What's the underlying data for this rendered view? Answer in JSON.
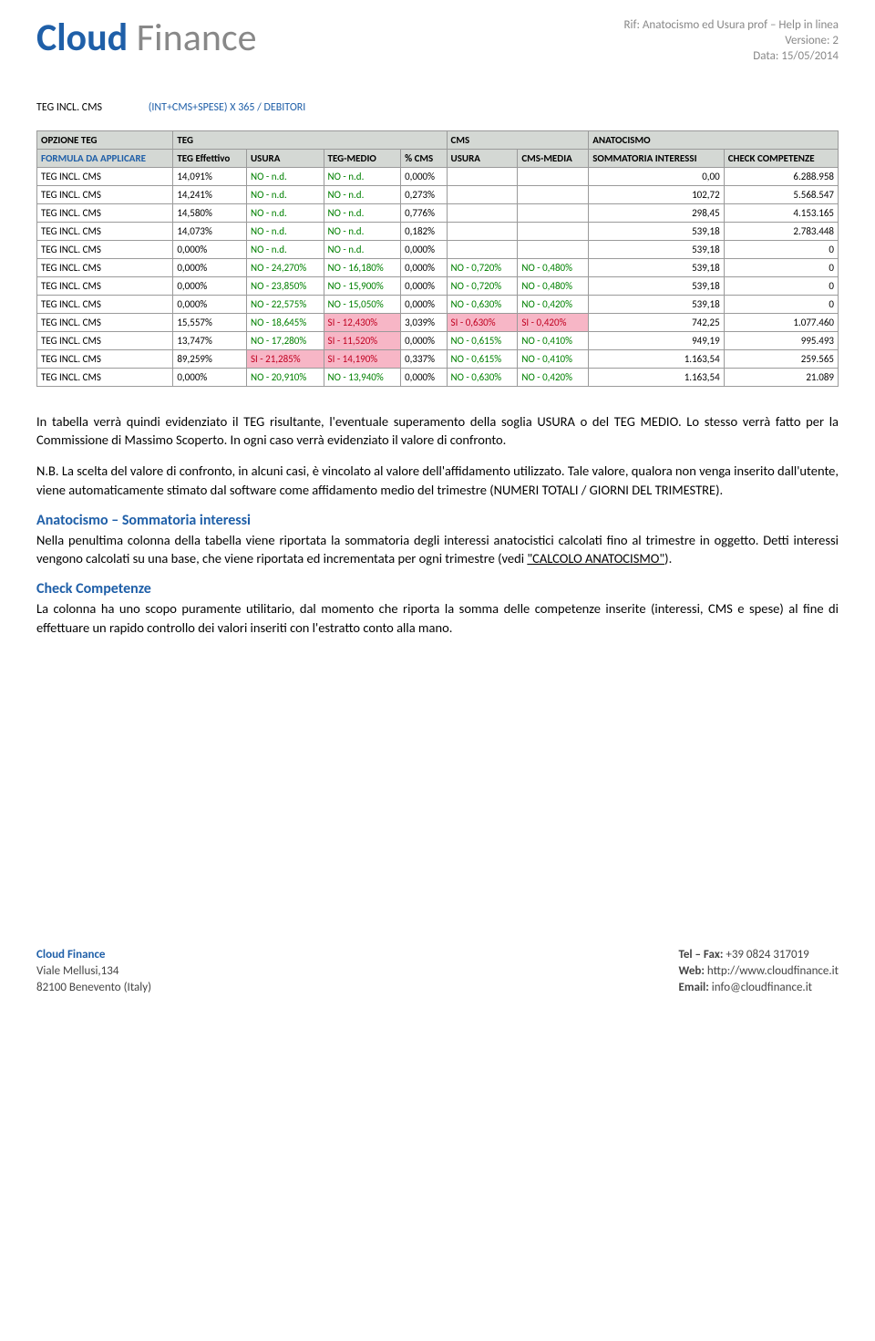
{
  "header": {
    "logo_bold": "Cloud",
    "logo_light": " Finance",
    "meta_line1": "Rif: Anatocismo ed Usura prof – Help in linea",
    "meta_line2": "Versione: 2",
    "meta_line3": "Data: 15/05/2014"
  },
  "formula": {
    "label": "TEG INCL. CMS",
    "value": "(INT+CMS+SPESE) X 365 / DEBITORI"
  },
  "table": {
    "group_headers": [
      "OPZIONE TEG",
      "TEG",
      "CMS",
      "ANATOCISMO"
    ],
    "group_spans": [
      1,
      4,
      2,
      2
    ],
    "columns": [
      "FORMULA DA APPLICARE",
      "TEG Effettivo",
      "USURA",
      "TEG-MEDIO",
      "% CMS",
      "USURA",
      "CMS-MEDIA",
      "SOMMATORIA INTERESSI",
      "CHECK COMPETENZE"
    ],
    "rows": [
      {
        "opt": "TEG INCL. CMS",
        "teg": "14,091%",
        "usura": {
          "t": "NO - n.d.",
          "c": "green"
        },
        "tegm": {
          "t": "NO - n.d.",
          "c": "green"
        },
        "pcms": "0,000%",
        "cu": {
          "t": "",
          "c": ""
        },
        "cm": {
          "t": "",
          "c": ""
        },
        "si": "0,00",
        "cc": "6.288.958"
      },
      {
        "opt": "TEG INCL. CMS",
        "teg": "14,241%",
        "usura": {
          "t": "NO - n.d.",
          "c": "green"
        },
        "tegm": {
          "t": "NO - n.d.",
          "c": "green"
        },
        "pcms": "0,273%",
        "cu": {
          "t": "",
          "c": ""
        },
        "cm": {
          "t": "",
          "c": ""
        },
        "si": "102,72",
        "cc": "5.568.547"
      },
      {
        "opt": "TEG INCL. CMS",
        "teg": "14,580%",
        "usura": {
          "t": "NO - n.d.",
          "c": "green"
        },
        "tegm": {
          "t": "NO - n.d.",
          "c": "green"
        },
        "pcms": "0,776%",
        "cu": {
          "t": "",
          "c": ""
        },
        "cm": {
          "t": "",
          "c": ""
        },
        "si": "298,45",
        "cc": "4.153.165"
      },
      {
        "opt": "TEG INCL. CMS",
        "teg": "14,073%",
        "usura": {
          "t": "NO - n.d.",
          "c": "green"
        },
        "tegm": {
          "t": "NO - n.d.",
          "c": "green"
        },
        "pcms": "0,182%",
        "cu": {
          "t": "",
          "c": ""
        },
        "cm": {
          "t": "",
          "c": ""
        },
        "si": "539,18",
        "cc": "2.783.448"
      },
      {
        "opt": "TEG INCL. CMS",
        "teg": "0,000%",
        "usura": {
          "t": "NO - n.d.",
          "c": "green"
        },
        "tegm": {
          "t": "NO - n.d.",
          "c": "green"
        },
        "pcms": "0,000%",
        "cu": {
          "t": "",
          "c": ""
        },
        "cm": {
          "t": "",
          "c": ""
        },
        "si": "539,18",
        "cc": "0"
      },
      {
        "opt": "TEG INCL. CMS",
        "teg": "0,000%",
        "usura": {
          "t": "NO - 24,270%",
          "c": "green"
        },
        "tegm": {
          "t": "NO - 16,180%",
          "c": "green"
        },
        "pcms": "0,000%",
        "cu": {
          "t": "NO - 0,720%",
          "c": "green"
        },
        "cm": {
          "t": "NO - 0,480%",
          "c": "green"
        },
        "si": "539,18",
        "cc": "0"
      },
      {
        "opt": "TEG INCL. CMS",
        "teg": "0,000%",
        "usura": {
          "t": "NO - 23,850%",
          "c": "green"
        },
        "tegm": {
          "t": "NO - 15,900%",
          "c": "green"
        },
        "pcms": "0,000%",
        "cu": {
          "t": "NO - 0,720%",
          "c": "green"
        },
        "cm": {
          "t": "NO - 0,480%",
          "c": "green"
        },
        "si": "539,18",
        "cc": "0"
      },
      {
        "opt": "TEG INCL. CMS",
        "teg": "0,000%",
        "usura": {
          "t": "NO - 22,575%",
          "c": "green"
        },
        "tegm": {
          "t": "NO - 15,050%",
          "c": "green"
        },
        "pcms": "0,000%",
        "cu": {
          "t": "NO - 0,630%",
          "c": "green"
        },
        "cm": {
          "t": "NO - 0,420%",
          "c": "green"
        },
        "si": "539,18",
        "cc": "0"
      },
      {
        "opt": "TEG INCL. CMS",
        "teg": "15,557%",
        "usura": {
          "t": "NO - 18,645%",
          "c": "green"
        },
        "tegm": {
          "t": "SI - 12,430%",
          "c": "red-bg"
        },
        "pcms": "3,039%",
        "cu": {
          "t": "SI - 0,630%",
          "c": "red-bg"
        },
        "cm": {
          "t": "SI - 0,420%",
          "c": "red-bg"
        },
        "si": "742,25",
        "cc": "1.077.460"
      },
      {
        "opt": "TEG INCL. CMS",
        "teg": "13,747%",
        "usura": {
          "t": "NO - 17,280%",
          "c": "green"
        },
        "tegm": {
          "t": "SI - 11,520%",
          "c": "red-bg"
        },
        "pcms": "0,000%",
        "cu": {
          "t": "NO - 0,615%",
          "c": "green"
        },
        "cm": {
          "t": "NO - 0,410%",
          "c": "green"
        },
        "si": "949,19",
        "cc": "995.493"
      },
      {
        "opt": "TEG INCL. CMS",
        "teg": "89,259%",
        "usura": {
          "t": "SI - 21,285%",
          "c": "red-bg"
        },
        "tegm": {
          "t": "SI - 14,190%",
          "c": "red-bg"
        },
        "pcms": "0,337%",
        "cu": {
          "t": "NO - 0,615%",
          "c": "green"
        },
        "cm": {
          "t": "NO - 0,410%",
          "c": "green"
        },
        "si": "1.163,54",
        "cc": "259.565"
      },
      {
        "opt": "TEG INCL. CMS",
        "teg": "0,000%",
        "usura": {
          "t": "NO - 20,910%",
          "c": "green"
        },
        "tegm": {
          "t": "NO - 13,940%",
          "c": "green"
        },
        "pcms": "0,000%",
        "cu": {
          "t": "NO - 0,630%",
          "c": "green"
        },
        "cm": {
          "t": "NO - 0,420%",
          "c": "green"
        },
        "si": "1.163,54",
        "cc": "21.089"
      }
    ]
  },
  "body": {
    "p1": "In tabella verrà quindi evidenziato il TEG risultante, l'eventuale superamento della soglia USURA o del TEG MEDIO. Lo stesso verrà fatto per la Commissione di Massimo Scoperto. In ogni caso verrà evidenziato il valore di confronto.",
    "p2": "N.B. La scelta del valore di confronto, in alcuni casi, è vincolato al valore dell'affidamento utilizzato. Tale valore, qualora non venga inserito dall'utente, viene automaticamente stimato dal software come affidamento medio del trimestre (NUMERI TOTALI / GIORNI DEL TRIMESTRE).",
    "h1": "Anatocismo – Sommatoria interessi",
    "p3a": "Nella penultima colonna della tabella viene riportata la sommatoria degli interessi anatocistici calcolati fino al trimestre in oggetto. Detti interessi vengono calcolati su una base, che viene riportata ed incrementata per ogni trimestre (vedi ",
    "p3link": "\"CALCOLO ANATOCISMO\"",
    "p3b": ").",
    "h2": "Check Competenze",
    "p4": "La colonna ha uno scopo puramente utilitario, dal momento che riporta la somma delle competenze inserite (interessi, CMS e spese) al fine di effettuare un rapido controllo dei valori inseriti con l'estratto conto alla mano."
  },
  "footer": {
    "company": "Cloud Finance",
    "addr1": "Viale Mellusi,134",
    "addr2": "82100 Benevento (Italy)",
    "tel_lbl": "Tel – Fax:",
    "tel_val": " +39 0824 317019",
    "web_lbl": "Web:",
    "web_val": " http://www.cloudfinance.it",
    "email_lbl": "Email:",
    "email_val": " info@cloudfinance.it"
  }
}
